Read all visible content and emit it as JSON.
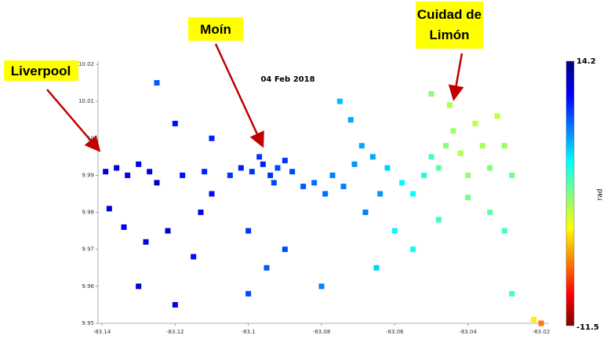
{
  "chart_data": {
    "type": "scatter",
    "title": "04 Feb 2018",
    "annotations": [
      "Liverpool",
      "Moín",
      "Cuidad de",
      "Limón"
    ],
    "colorbar": {
      "label": "rad",
      "clim": [
        -11.5,
        14.2
      ],
      "colormap": "jet"
    },
    "x": [
      -83.139,
      -83.136,
      -83.133,
      -83.13,
      -83.127,
      -83.125,
      -83.138,
      -83.134,
      -83.128,
      -83.122,
      -83.118,
      -83.112,
      -83.11,
      -83.105,
      -83.102,
      -83.099,
      -83.096,
      -83.094,
      -83.092,
      -83.09,
      -83.097,
      -83.093,
      -83.088,
      -83.085,
      -83.11,
      -83.12,
      -83.1,
      -83.115,
      -83.09,
      -83.082,
      -83.079,
      -83.077,
      -83.074,
      -83.071,
      -83.069,
      -83.072,
      -83.075,
      -83.066,
      -83.064,
      -83.068,
      -83.062,
      -83.058,
      -83.055,
      -83.052,
      -83.05,
      -83.048,
      -83.046,
      -83.044,
      -83.042,
      -83.04,
      -83.038,
      -83.036,
      -83.034,
      -83.032,
      -83.03,
      -83.028,
      -83.045,
      -83.04,
      -83.034,
      -83.03,
      -83.048,
      -83.055,
      -83.065,
      -83.08,
      -83.1,
      -83.12,
      -83.13,
      -83.028,
      -83.022,
      -83.02,
      -83.095,
      -83.06,
      -83.05,
      -83.125,
      -83.113
    ],
    "values": [
      9.991,
      9.992,
      9.99,
      9.993,
      9.991,
      9.988,
      9.981,
      9.976,
      9.972,
      9.975,
      9.99,
      9.991,
      9.985,
      9.99,
      9.992,
      9.991,
      9.993,
      9.99,
      9.992,
      9.994,
      9.995,
      9.988,
      9.991,
      9.987,
      10.0,
      10.004,
      9.975,
      9.968,
      9.97,
      9.988,
      9.985,
      9.99,
      9.987,
      9.993,
      9.998,
      10.005,
      10.01,
      9.995,
      9.985,
      9.98,
      9.992,
      9.988,
      9.985,
      9.99,
      9.995,
      9.992,
      9.998,
      10.002,
      9.996,
      9.99,
      10.004,
      9.998,
      9.992,
      10.006,
      9.998,
      9.99,
      10.009,
      9.984,
      9.98,
      9.975,
      9.978,
      9.97,
      9.965,
      9.96,
      9.958,
      9.955,
      9.96,
      9.958,
      9.951,
      9.95,
      9.965,
      9.975,
      10.012,
      10.015,
      9.98
    ],
    "color_values": [
      -9,
      -9.5,
      -9,
      -8.5,
      -9,
      -10,
      -9.5,
      -8.5,
      -9,
      -9.5,
      -8,
      -7.5,
      -8,
      -7,
      -7.5,
      -7,
      -7.5,
      -7,
      -6.5,
      -7,
      -7,
      -6.5,
      -6.5,
      -6,
      -7.5,
      -8,
      -7,
      -8,
      -6.5,
      -5.5,
      -5.5,
      -5,
      -5,
      -4.5,
      -4,
      -4,
      -3.5,
      -4,
      -4.5,
      -5,
      -3,
      -2,
      -1.5,
      -1,
      0,
      0.5,
      1.5,
      2,
      2.5,
      2,
      3,
      2.5,
      1.5,
      3,
      2,
      1,
      2.5,
      1,
      0.5,
      0,
      -0.5,
      -1.5,
      -3,
      -5,
      -6.5,
      -9,
      -9.5,
      0,
      5,
      8,
      -6,
      -2,
      1.5,
      -6,
      -8.5
    ],
    "xlim": [
      -83.14,
      -83.02
    ],
    "ylim": [
      9.95,
      10.02
    ],
    "xticks": [
      -83.14,
      -83.12,
      -83.1,
      -83.08,
      -83.06,
      -83.04,
      -83.02
    ],
    "yticks": [
      9.95,
      9.96,
      9.97,
      9.98,
      9.99,
      10,
      10.01,
      10.02
    ]
  }
}
